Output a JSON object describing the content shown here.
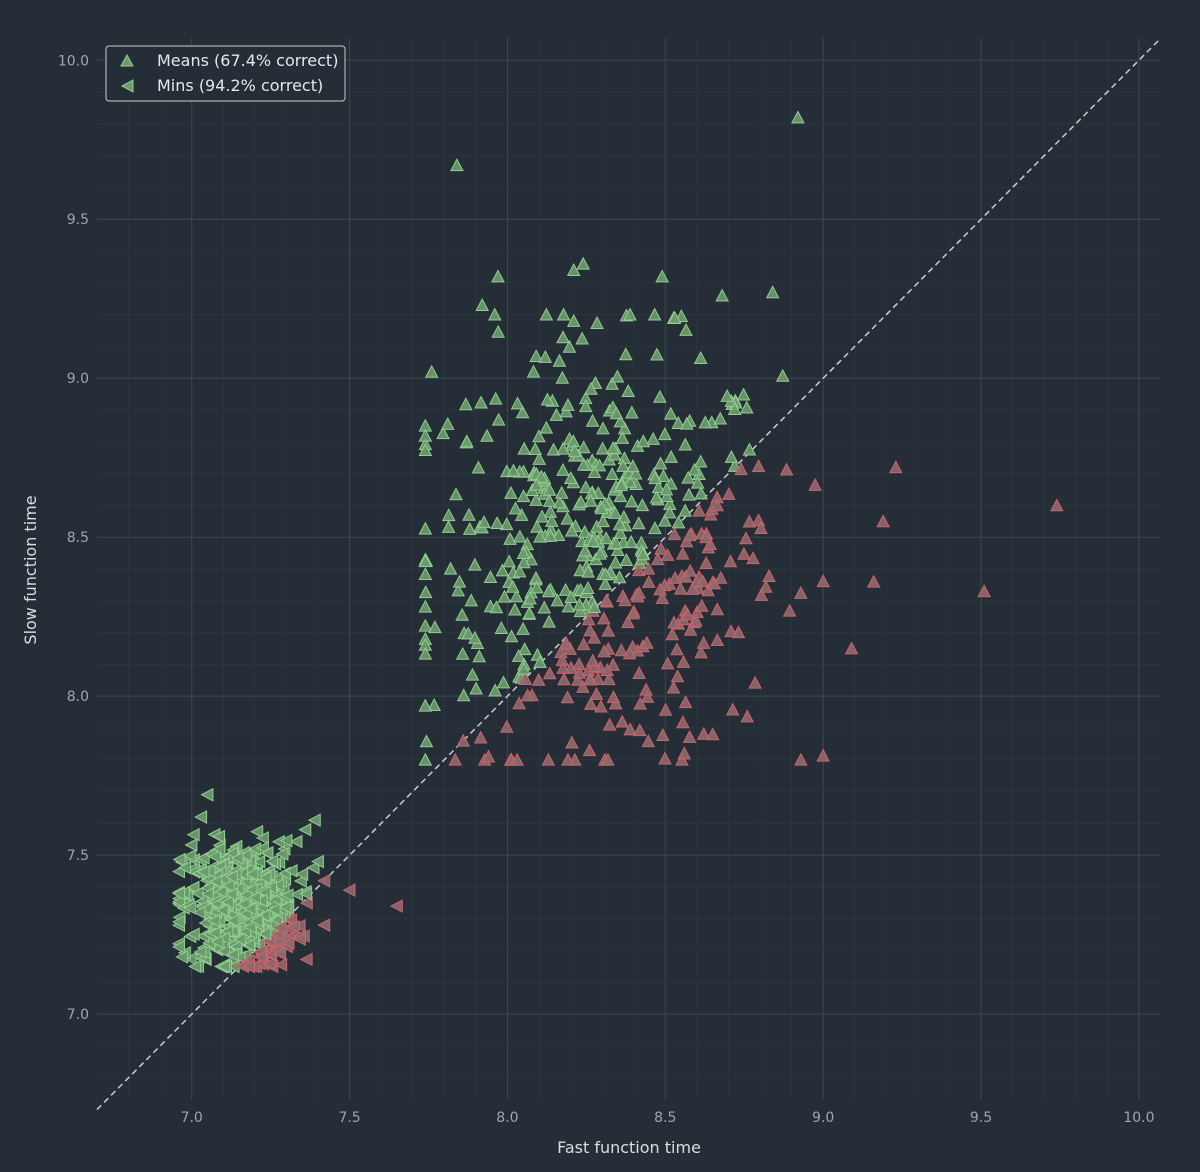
{
  "chart_data": {
    "type": "scatter",
    "xlabel": "Fast function time",
    "ylabel": "Slow function time",
    "xlim": [
      6.7,
      10.07
    ],
    "ylim": [
      6.73,
      10.07
    ],
    "xticks": [
      "7.0",
      "7.5",
      "8.0",
      "8.5",
      "9.0",
      "9.5",
      "10.0"
    ],
    "yticks": [
      "7.0",
      "7.5",
      "8.0",
      "8.5",
      "9.0",
      "9.5",
      "10.0"
    ],
    "reference_line": "y = x (dashed)",
    "grid": true,
    "legend_position": "top-left",
    "colors": {
      "background": "#252e36",
      "grid_major": "#3a4852",
      "grid_minor": "#2d3841",
      "correct_fill": "#6e9a6e",
      "correct_edge": "#8fcf8f",
      "incorrect_fill": "#8a6a6e",
      "incorrect_edge": "#d2606a",
      "diagonal": "#c8ced2"
    },
    "series": [
      {
        "name": "Means (67.4% correct)",
        "marker": "triangle-up",
        "correct_fraction": 0.674,
        "center": [
          8.3,
          8.45
        ],
        "spread": [
          0.28,
          0.32
        ],
        "count": 520,
        "highlighted_points": [
          [
            8.92,
            9.82
          ],
          [
            7.84,
            9.67
          ],
          [
            9.74,
            8.6
          ],
          [
            9.51,
            8.33
          ],
          [
            9.23,
            8.72
          ],
          [
            8.24,
            9.36
          ],
          [
            8.21,
            9.34
          ],
          [
            7.97,
            9.32
          ],
          [
            8.49,
            9.32
          ],
          [
            8.68,
            9.26
          ],
          [
            8.84,
            9.27
          ],
          [
            8.53,
            9.19
          ],
          [
            7.92,
            9.23
          ],
          [
            7.96,
            9.2
          ],
          [
            8.21,
            9.18
          ],
          [
            7.76,
            9.02
          ],
          [
            7.74,
            7.97
          ],
          [
            7.86,
            7.86
          ],
          [
            7.94,
            7.81
          ],
          [
            8.56,
            7.82
          ],
          [
            8.65,
            7.88
          ],
          [
            9.19,
            8.55
          ],
          [
            9.09,
            8.15
          ],
          [
            9.16,
            8.36
          ],
          [
            8.26,
            7.83
          ]
        ]
      },
      {
        "name": "Mins (94.2% correct)",
        "marker": "triangle-left",
        "correct_fraction": 0.942,
        "center": [
          7.15,
          7.34
        ],
        "spread": [
          0.09,
          0.1
        ],
        "count": 520,
        "highlighted_points": [
          [
            7.05,
            7.69
          ],
          [
            7.65,
            7.34
          ],
          [
            7.5,
            7.39
          ],
          [
            7.42,
            7.28
          ],
          [
            7.39,
            7.61
          ],
          [
            7.36,
            7.58
          ],
          [
            7.4,
            7.48
          ],
          [
            7.03,
            7.62
          ],
          [
            6.97,
            7.18
          ],
          [
            7.28,
            7.19
          ]
        ]
      }
    ]
  }
}
